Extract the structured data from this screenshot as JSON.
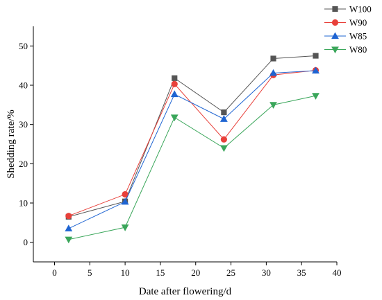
{
  "chart_data": {
    "type": "line",
    "xlabel": "Date after flowering/d",
    "ylabel": "Shedding rate/%",
    "xlim": [
      -3,
      40
    ],
    "ylim": [
      -5,
      55
    ],
    "xticks": [
      0,
      5,
      10,
      15,
      20,
      25,
      30,
      35,
      40
    ],
    "yticks": [
      0,
      10,
      20,
      30,
      40,
      50
    ],
    "x": [
      2,
      10,
      17,
      24,
      31,
      37
    ],
    "legend_position": "top-right-outside",
    "grid": false,
    "series": [
      {
        "name": "W100",
        "marker": "square",
        "color": "#555555",
        "values": [
          6.5,
          10.4,
          41.8,
          33.1,
          46.8,
          47.5
        ]
      },
      {
        "name": "W90",
        "marker": "circle",
        "color": "#e8403a",
        "values": [
          6.7,
          12.2,
          40.3,
          26.2,
          42.6,
          43.8
        ]
      },
      {
        "name": "W85",
        "marker": "triangle-up",
        "color": "#1e64d2",
        "values": [
          3.5,
          10.3,
          37.7,
          31.4,
          43.1,
          43.7
        ]
      },
      {
        "name": "W80",
        "marker": "triangle-down",
        "color": "#3aa65a",
        "values": [
          0.7,
          3.8,
          31.8,
          24.0,
          35.0,
          37.3
        ]
      }
    ]
  }
}
